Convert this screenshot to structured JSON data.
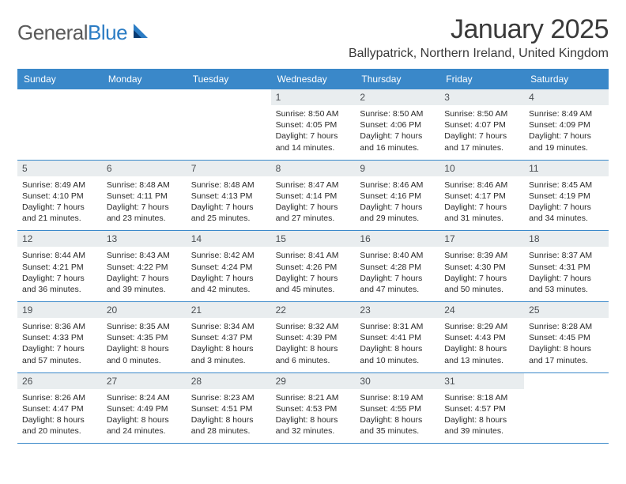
{
  "brand": {
    "part1": "General",
    "part2": "Blue"
  },
  "title": "January 2025",
  "location": "Ballypatrick, Northern Ireland, United Kingdom",
  "colors": {
    "header_bg": "#3a88c9",
    "header_text": "#ffffff",
    "daynum_bg": "#e9edef",
    "daynum_text": "#4a4e52",
    "body_text": "#2a2a2a",
    "row_border": "#3a88c9",
    "logo_gray": "#5a5a5a",
    "logo_blue": "#2b7cc4"
  },
  "dow": [
    "Sunday",
    "Monday",
    "Tuesday",
    "Wednesday",
    "Thursday",
    "Friday",
    "Saturday"
  ],
  "weeks": [
    [
      null,
      null,
      null,
      {
        "n": "1",
        "sr": "8:50 AM",
        "ss": "4:05 PM",
        "dlh": "7",
        "dlm": "14"
      },
      {
        "n": "2",
        "sr": "8:50 AM",
        "ss": "4:06 PM",
        "dlh": "7",
        "dlm": "16"
      },
      {
        "n": "3",
        "sr": "8:50 AM",
        "ss": "4:07 PM",
        "dlh": "7",
        "dlm": "17"
      },
      {
        "n": "4",
        "sr": "8:49 AM",
        "ss": "4:09 PM",
        "dlh": "7",
        "dlm": "19"
      }
    ],
    [
      {
        "n": "5",
        "sr": "8:49 AM",
        "ss": "4:10 PM",
        "dlh": "7",
        "dlm": "21"
      },
      {
        "n": "6",
        "sr": "8:48 AM",
        "ss": "4:11 PM",
        "dlh": "7",
        "dlm": "23"
      },
      {
        "n": "7",
        "sr": "8:48 AM",
        "ss": "4:13 PM",
        "dlh": "7",
        "dlm": "25"
      },
      {
        "n": "8",
        "sr": "8:47 AM",
        "ss": "4:14 PM",
        "dlh": "7",
        "dlm": "27"
      },
      {
        "n": "9",
        "sr": "8:46 AM",
        "ss": "4:16 PM",
        "dlh": "7",
        "dlm": "29"
      },
      {
        "n": "10",
        "sr": "8:46 AM",
        "ss": "4:17 PM",
        "dlh": "7",
        "dlm": "31"
      },
      {
        "n": "11",
        "sr": "8:45 AM",
        "ss": "4:19 PM",
        "dlh": "7",
        "dlm": "34"
      }
    ],
    [
      {
        "n": "12",
        "sr": "8:44 AM",
        "ss": "4:21 PM",
        "dlh": "7",
        "dlm": "36"
      },
      {
        "n": "13",
        "sr": "8:43 AM",
        "ss": "4:22 PM",
        "dlh": "7",
        "dlm": "39"
      },
      {
        "n": "14",
        "sr": "8:42 AM",
        "ss": "4:24 PM",
        "dlh": "7",
        "dlm": "42"
      },
      {
        "n": "15",
        "sr": "8:41 AM",
        "ss": "4:26 PM",
        "dlh": "7",
        "dlm": "45"
      },
      {
        "n": "16",
        "sr": "8:40 AM",
        "ss": "4:28 PM",
        "dlh": "7",
        "dlm": "47"
      },
      {
        "n": "17",
        "sr": "8:39 AM",
        "ss": "4:30 PM",
        "dlh": "7",
        "dlm": "50"
      },
      {
        "n": "18",
        "sr": "8:37 AM",
        "ss": "4:31 PM",
        "dlh": "7",
        "dlm": "53"
      }
    ],
    [
      {
        "n": "19",
        "sr": "8:36 AM",
        "ss": "4:33 PM",
        "dlh": "7",
        "dlm": "57"
      },
      {
        "n": "20",
        "sr": "8:35 AM",
        "ss": "4:35 PM",
        "dlh": "8",
        "dlm": "0"
      },
      {
        "n": "21",
        "sr": "8:34 AM",
        "ss": "4:37 PM",
        "dlh": "8",
        "dlm": "3"
      },
      {
        "n": "22",
        "sr": "8:32 AM",
        "ss": "4:39 PM",
        "dlh": "8",
        "dlm": "6"
      },
      {
        "n": "23",
        "sr": "8:31 AM",
        "ss": "4:41 PM",
        "dlh": "8",
        "dlm": "10"
      },
      {
        "n": "24",
        "sr": "8:29 AM",
        "ss": "4:43 PM",
        "dlh": "8",
        "dlm": "13"
      },
      {
        "n": "25",
        "sr": "8:28 AM",
        "ss": "4:45 PM",
        "dlh": "8",
        "dlm": "17"
      }
    ],
    [
      {
        "n": "26",
        "sr": "8:26 AM",
        "ss": "4:47 PM",
        "dlh": "8",
        "dlm": "20"
      },
      {
        "n": "27",
        "sr": "8:24 AM",
        "ss": "4:49 PM",
        "dlh": "8",
        "dlm": "24"
      },
      {
        "n": "28",
        "sr": "8:23 AM",
        "ss": "4:51 PM",
        "dlh": "8",
        "dlm": "28"
      },
      {
        "n": "29",
        "sr": "8:21 AM",
        "ss": "4:53 PM",
        "dlh": "8",
        "dlm": "32"
      },
      {
        "n": "30",
        "sr": "8:19 AM",
        "ss": "4:55 PM",
        "dlh": "8",
        "dlm": "35"
      },
      {
        "n": "31",
        "sr": "8:18 AM",
        "ss": "4:57 PM",
        "dlh": "8",
        "dlm": "39"
      },
      null
    ]
  ],
  "labels": {
    "sunrise": "Sunrise:",
    "sunset": "Sunset:",
    "daylight": "Daylight:",
    "hours": "hours",
    "and": "and",
    "minutes": "minutes."
  }
}
